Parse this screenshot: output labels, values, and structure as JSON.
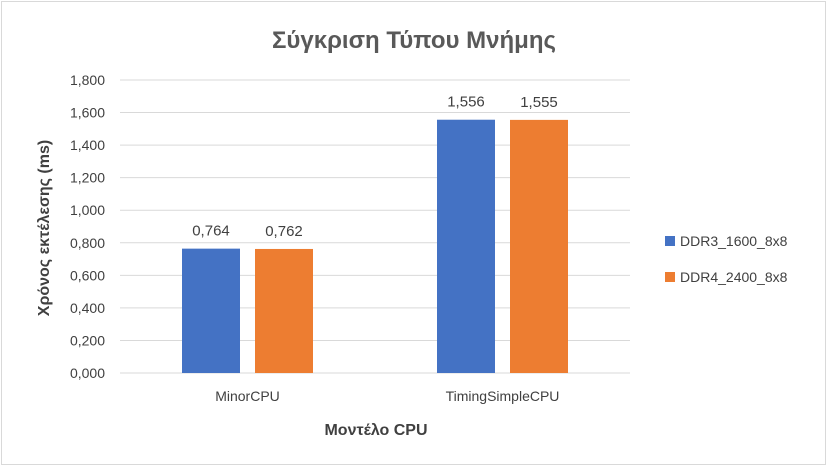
{
  "chart_data": {
    "type": "bar",
    "title": "Σύγκριση Τύπου Μνήμης",
    "xlabel": "Μοντέλο CPU",
    "ylabel": "Χρόνος εκτέλεσης (ms)",
    "categories": [
      "MinorCPU",
      "TimingSimpleCPU"
    ],
    "series": [
      {
        "name": "DDR3_1600_8x8",
        "values": [
          0.764,
          1.556
        ],
        "labels": [
          "0,764",
          "1,556"
        ],
        "color": "#4472C4"
      },
      {
        "name": "DDR4_2400_8x8",
        "values": [
          0.762,
          1.555
        ],
        "labels": [
          "0,762",
          "1,555"
        ],
        "color": "#ED7D31"
      }
    ],
    "ylim": [
      0,
      1.8
    ],
    "yticks": [
      0,
      0.2,
      0.4,
      0.6,
      0.8,
      1.0,
      1.2,
      1.4,
      1.6,
      1.8
    ],
    "ytick_labels": [
      "0,000",
      "0,200",
      "0,400",
      "0,600",
      "0,800",
      "1,000",
      "1,200",
      "1,400",
      "1,600",
      "1,800"
    ],
    "grid": true,
    "legend_position": "right",
    "colors": {
      "grid": "#d9d9d9",
      "text": "#404040",
      "title": "#595959"
    }
  }
}
